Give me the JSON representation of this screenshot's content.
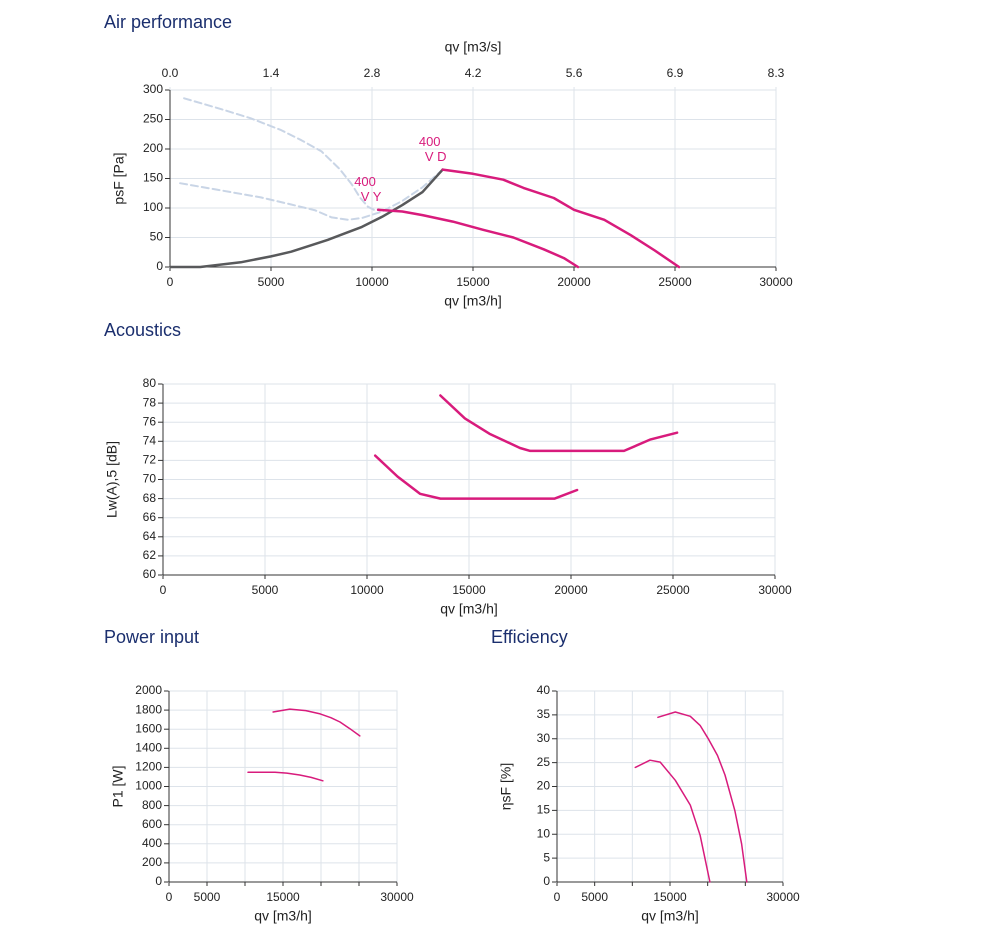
{
  "chart_data": [
    {
      "type": "line",
      "title": "Air performance",
      "xlabel": "qv [m3/h]",
      "xlim": [
        0,
        30000
      ],
      "xticks": [
        0,
        5000,
        10000,
        15000,
        20000,
        25000,
        30000
      ],
      "x2label": "qv [m3/s]",
      "x2lim": [
        0,
        8.333
      ],
      "x2ticks": [
        {
          "value": 0,
          "label": "0.0"
        },
        {
          "value": 1.389,
          "label": "1.4"
        },
        {
          "value": 2.778,
          "label": "2.8"
        },
        {
          "value": 4.167,
          "label": "4.2"
        },
        {
          "value": 5.556,
          "label": "5.6"
        },
        {
          "value": 6.944,
          "label": "6.9"
        },
        {
          "value": 8.333,
          "label": "8.3"
        }
      ],
      "ylabel": "psF [Pa]",
      "ylim": [
        0,
        300
      ],
      "yticks": [
        0,
        50,
        100,
        150,
        200,
        250,
        300
      ],
      "grid": true,
      "series": [
        {
          "color": "#c9d5e6",
          "dash": true,
          "x": [
            700,
            2500,
            4000,
            5500,
            6500,
            7500,
            8400,
            9000,
            9400,
            9800,
            10200
          ],
          "values": [
            286,
            268,
            252,
            232,
            215,
            196,
            166,
            140,
            118,
            102,
            95
          ]
        },
        {
          "color": "#c9d5e6",
          "dash": true,
          "x": [
            500,
            2500,
            4500,
            6000,
            7200,
            8000,
            8800,
            9500,
            10500,
            11500,
            12500,
            13500
          ],
          "values": [
            142,
            130,
            118,
            106,
            96,
            84,
            80,
            83,
            94,
            112,
            135,
            165
          ]
        },
        {
          "color": "#58595b",
          "x": [
            0,
            1500,
            2500,
            3500,
            5000,
            6000,
            7000,
            7800,
            8500,
            9500,
            10500,
            11500,
            12500,
            13500
          ],
          "values": [
            0,
            0,
            4,
            8,
            18,
            26,
            37,
            46,
            55,
            68,
            85,
            105,
            127,
            165
          ]
        },
        {
          "color": "#d81b7c",
          "label_lines": [
            "400",
            "V D"
          ],
          "x": [
            13500,
            15000,
            16500,
            17500,
            19000,
            20000,
            21500,
            22800,
            24000,
            25200
          ],
          "values": [
            165,
            158,
            148,
            134,
            117,
            97,
            80,
            54,
            28,
            0
          ]
        },
        {
          "color": "#d81b7c",
          "label_lines": [
            "400",
            "V Y"
          ],
          "x": [
            10300,
            11500,
            12500,
            14000,
            15500,
            17000,
            18500,
            19500,
            20200
          ],
          "values": [
            97,
            94,
            88,
            77,
            63,
            50,
            30,
            15,
            0
          ]
        }
      ]
    },
    {
      "type": "line",
      "title": "Acoustics",
      "xlabel": "qv [m3/h]",
      "xlim": [
        0,
        30000
      ],
      "xticks": [
        0,
        5000,
        10000,
        15000,
        20000,
        25000,
        30000
      ],
      "ylabel": "Lw(A),5 [dB]",
      "ylim": [
        60,
        80
      ],
      "yticks": [
        60,
        62,
        64,
        66,
        68,
        70,
        72,
        74,
        76,
        78,
        80
      ],
      "grid": true,
      "series": [
        {
          "color": "#d81b7c",
          "x": [
            13600,
            14800,
            16000,
            17500,
            18000,
            20000,
            22600,
            23900,
            25200
          ],
          "values": [
            78.8,
            76.4,
            74.8,
            73.3,
            73,
            73,
            73,
            74.2,
            74.9
          ]
        },
        {
          "color": "#d81b7c",
          "x": [
            10400,
            11500,
            12600,
            13600,
            15000,
            17000,
            18500,
            19200,
            20300
          ],
          "values": [
            72.5,
            70.3,
            68.5,
            68,
            68,
            68,
            68,
            68,
            68.9
          ]
        }
      ]
    },
    {
      "type": "line",
      "title": "Power input",
      "xlabel": "qv [m3/h]",
      "xlim": [
        0,
        30000
      ],
      "xticks": [
        0,
        5000,
        {
          "value": 10000,
          "label": null
        },
        15000,
        {
          "value": 20000,
          "label": null
        },
        {
          "value": 25000,
          "label": null
        },
        30000
      ],
      "ylabel": "P1 [W]",
      "ylim": [
        0,
        2000
      ],
      "yticks": [
        0,
        200,
        400,
        600,
        800,
        1000,
        1200,
        1400,
        1600,
        1800,
        2000
      ],
      "grid": true,
      "series": [
        {
          "color": "#d81b7c",
          "x": [
            13700,
            15900,
            18000,
            19900,
            21300,
            22500,
            23800,
            25100
          ],
          "values": [
            1780,
            1810,
            1795,
            1760,
            1720,
            1675,
            1605,
            1530
          ]
        },
        {
          "color": "#d81b7c",
          "x": [
            10400,
            12500,
            13950,
            15500,
            17200,
            18700,
            20250
          ],
          "values": [
            1150,
            1150,
            1150,
            1140,
            1120,
            1095,
            1060
          ]
        }
      ]
    },
    {
      "type": "line",
      "title": "Efficiency",
      "xlabel": "qv [m3/h]",
      "xlim": [
        0,
        30000
      ],
      "xticks": [
        0,
        5000,
        {
          "value": 10000,
          "label": null
        },
        15000,
        {
          "value": 20000,
          "label": null
        },
        {
          "value": 25000,
          "label": null
        },
        30000
      ],
      "ylabel": "ηsF [%]",
      "ylim": [
        0,
        40
      ],
      "yticks": [
        0,
        5,
        10,
        15,
        20,
        25,
        30,
        35,
        40
      ],
      "grid": true,
      "series": [
        {
          "color": "#d81b7c",
          "x": [
            13400,
            15700,
            17700,
            19000,
            20050,
            21300,
            22300,
            23600,
            24500,
            25200
          ],
          "values": [
            34.5,
            35.6,
            34.7,
            32.8,
            30.1,
            26.5,
            22.4,
            15,
            8,
            0
          ]
        },
        {
          "color": "#d81b7c",
          "x": [
            10400,
            12350,
            13700,
            15700,
            17700,
            19000,
            20300
          ],
          "values": [
            24,
            25.5,
            25.1,
            21.3,
            16.1,
            9.8,
            0
          ]
        }
      ]
    }
  ]
}
